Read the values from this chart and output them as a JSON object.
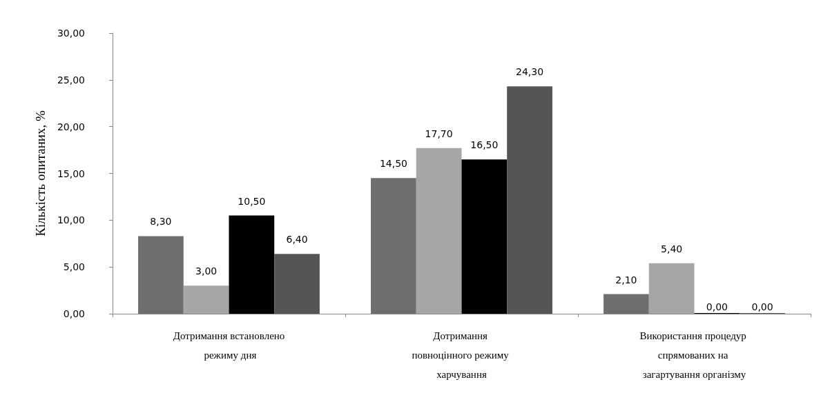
{
  "chart_data": {
    "type": "bar",
    "ylabel": "Кількість опитаних, %",
    "categories": [
      "Дотримання встановлено режиму дня",
      "Дотримання повноцінного режиму харчування",
      "Використання процедур спрямованих на загартування організму"
    ],
    "series": [
      {
        "color": "#6e6e6e",
        "values": [
          8.3,
          14.5,
          2.1
        ],
        "value_labels": [
          "8,30",
          "14,50",
          "2,10"
        ]
      },
      {
        "color": "#a6a6a6",
        "values": [
          3.0,
          17.7,
          5.4
        ],
        "value_labels": [
          "3,00",
          "17,70",
          "5,40"
        ]
      },
      {
        "color": "#000000",
        "values": [
          10.5,
          16.5,
          0.0
        ],
        "value_labels": [
          "10,50",
          "16,50",
          "0,00"
        ]
      },
      {
        "color": "#555555",
        "values": [
          6.4,
          24.3,
          0.0
        ],
        "value_labels": [
          "6,40",
          "24,30",
          "0,00"
        ]
      }
    ],
    "ylim": [
      0,
      30
    ],
    "yticks": [
      {
        "value": 0,
        "label": "0,00"
      },
      {
        "value": 5,
        "label": "5,00"
      },
      {
        "value": 10,
        "label": "10,00"
      },
      {
        "value": 15,
        "label": "15,00"
      },
      {
        "value": 20,
        "label": "20,00"
      },
      {
        "value": 25,
        "label": "25,00"
      },
      {
        "value": 30,
        "label": "30,00"
      }
    ],
    "grid": false
  }
}
